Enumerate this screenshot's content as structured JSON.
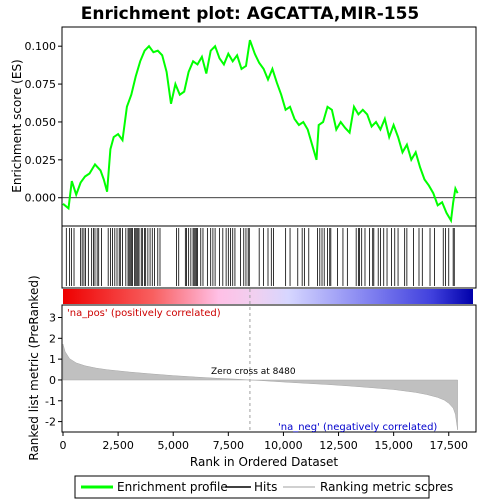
{
  "chart_data": {
    "type": "line",
    "title": "Enrichment plot: AGCATTA,MIR-155",
    "es_panel": {
      "ylabel": "Enrichment score (ES)",
      "ylim": [
        -0.018,
        0.112
      ],
      "yticks": [
        0.0,
        0.025,
        0.05,
        0.075,
        0.1
      ],
      "ytick_labels": [
        "0.000",
        "0.025",
        "0.050",
        "0.075",
        "0.100"
      ],
      "series": [
        {
          "name": "Enrichment profile",
          "color": "#00ff00",
          "x": [
            0,
            250,
            400,
            600,
            800,
            1000,
            1200,
            1450,
            1700,
            1850,
            2000,
            2150,
            2300,
            2500,
            2700,
            2900,
            3100,
            3300,
            3500,
            3700,
            3900,
            4100,
            4300,
            4500,
            4700,
            4900,
            5100,
            5300,
            5500,
            5700,
            5900,
            6100,
            6300,
            6500,
            6700,
            6900,
            7100,
            7300,
            7500,
            7700,
            7900,
            8100,
            8300,
            8480,
            8700,
            8900,
            9100,
            9300,
            9500,
            9700,
            9900,
            10100,
            10300,
            10500,
            10700,
            10900,
            11100,
            11300,
            11500,
            11600,
            11800,
            12000,
            12200,
            12400,
            12600,
            12800,
            13000,
            13200,
            13400,
            13600,
            13800,
            14000,
            14200,
            14400,
            14600,
            14800,
            15000,
            15200,
            15400,
            15600,
            15800,
            16000,
            16200,
            16400,
            16600,
            16800,
            17000,
            17200,
            17400,
            17600,
            17700,
            17800,
            17900
          ],
          "y": [
            -0.004,
            -0.007,
            0.011,
            0.002,
            0.01,
            0.014,
            0.016,
            0.022,
            0.018,
            0.012,
            0.004,
            0.032,
            0.04,
            0.042,
            0.038,
            0.06,
            0.068,
            0.08,
            0.09,
            0.097,
            0.1,
            0.096,
            0.097,
            0.094,
            0.083,
            0.062,
            0.075,
            0.068,
            0.07,
            0.083,
            0.09,
            0.088,
            0.093,
            0.082,
            0.097,
            0.1,
            0.092,
            0.088,
            0.095,
            0.09,
            0.094,
            0.085,
            0.087,
            0.104,
            0.095,
            0.089,
            0.085,
            0.078,
            0.085,
            0.076,
            0.068,
            0.058,
            0.06,
            0.052,
            0.048,
            0.05,
            0.045,
            0.035,
            0.025,
            0.048,
            0.05,
            0.06,
            0.058,
            0.045,
            0.05,
            0.046,
            0.043,
            0.06,
            0.055,
            0.058,
            0.055,
            0.047,
            0.05,
            0.045,
            0.052,
            0.04,
            0.048,
            0.04,
            0.03,
            0.035,
            0.025,
            0.03,
            0.02,
            0.012,
            0.008,
            0.003,
            -0.005,
            -0.003,
            -0.01,
            -0.015,
            -0.003,
            0.006,
            0.003
          ]
        }
      ]
    },
    "rank_panel": {
      "ylabel": "Ranked list metric (PreRanked)",
      "xlabel": "Rank in Ordered Dataset",
      "ylim": [
        -2.5,
        3.6
      ],
      "yticks": [
        -2,
        -1,
        0,
        1,
        2,
        3
      ],
      "ytick_labels": [
        "-2",
        "-1",
        "0",
        "1",
        "2",
        "3"
      ],
      "xlim": [
        0,
        18600
      ],
      "xticks": [
        0,
        2500,
        5000,
        7500,
        10000,
        12500,
        15000,
        17500
      ],
      "xtick_labels": [
        "0",
        "2,500",
        "5,000",
        "7,500",
        "10,000",
        "12,500",
        "15,000",
        "17,500"
      ],
      "metric_x": [
        0,
        100,
        300,
        600,
        1000,
        1500,
        2000,
        3000,
        4000,
        5000,
        6000,
        7000,
        8000,
        8480,
        9000,
        10000,
        11000,
        12000,
        13000,
        14000,
        15000,
        16000,
        16500,
        17000,
        17300,
        17500,
        17700,
        17800,
        17900
      ],
      "metric_y": [
        1.72,
        1.35,
        1.02,
        0.82,
        0.68,
        0.57,
        0.49,
        0.38,
        0.29,
        0.21,
        0.14,
        0.08,
        0.03,
        0.0,
        -0.03,
        -0.1,
        -0.16,
        -0.22,
        -0.29,
        -0.37,
        -0.46,
        -0.6,
        -0.7,
        -0.84,
        -0.97,
        -1.12,
        -1.35,
        -1.65,
        -2.4
      ],
      "zero_cross_label": "Zero cross at 8480",
      "zero_cross": 8480,
      "pos_label": "'na_pos' (positively correlated)",
      "neg_label": "'na_neg' (negatively correlated)"
    },
    "hits": [
      150,
      300,
      380,
      500,
      800,
      870,
      950,
      1020,
      1150,
      1300,
      1380,
      1450,
      1550,
      1620,
      1750,
      2050,
      2150,
      2250,
      2350,
      2450,
      2550,
      2600,
      2700,
      2850,
      2950,
      3000,
      3050,
      3100,
      3150,
      3250,
      3300,
      3350,
      3400,
      3450,
      3550,
      3600,
      3700,
      3750,
      3850,
      3950,
      4050,
      4150,
      4300,
      4400,
      5150,
      5250,
      5550,
      5600,
      5700,
      5800,
      5900,
      5950,
      6000,
      6050,
      6100,
      6250,
      6350,
      6550,
      6700,
      6800,
      6900,
      7100,
      7250,
      7400,
      7500,
      7600,
      7700,
      7800,
      8050,
      8200,
      8300,
      8400,
      8450,
      8900,
      9100,
      9300,
      9450,
      9550,
      10100,
      10300,
      10650,
      10850,
      10950,
      11150,
      11550,
      11650,
      11750,
      11850,
      12000,
      12100,
      12150,
      12450,
      12700,
      12900,
      13300,
      13400,
      13450,
      13550,
      13700,
      13900,
      14050,
      14100,
      14300,
      14400,
      14550,
      14700,
      14900,
      15050,
      15200,
      15500,
      15600,
      15900,
      16150,
      16300,
      16650,
      16850,
      17250,
      17350,
      17500,
      17700,
      17750
    ],
    "legend": [
      {
        "label": "Enrichment profile",
        "color": "#00ff00"
      },
      {
        "label": "Hits",
        "color": "#000000"
      },
      {
        "label": "Ranking metric scores",
        "color": "#c0c0c0"
      }
    ]
  }
}
